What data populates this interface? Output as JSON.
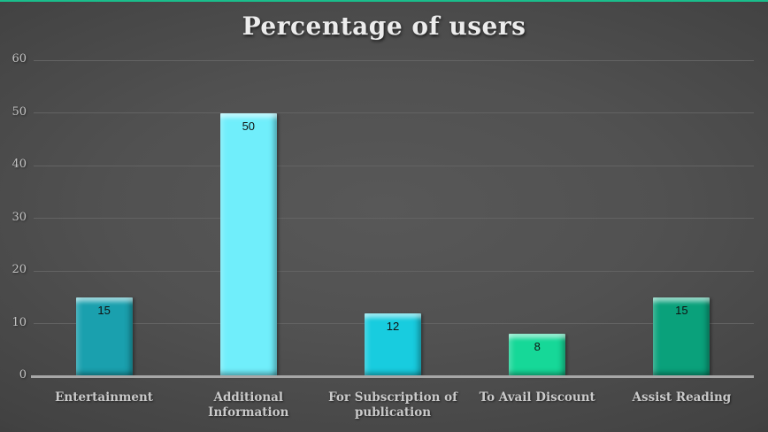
{
  "chart_data": {
    "type": "bar",
    "title": "Percentage of users",
    "categories": [
      "Entertainment",
      "Additional Information",
      "For Subscription of publication",
      "To Avail Discount",
      "Assist Reading"
    ],
    "values": [
      15,
      50,
      12,
      8,
      15
    ],
    "value_labels_shown": true,
    "bar_colors": [
      "#1aa0ae",
      "#70eefb",
      "#18ccdf",
      "#16d898",
      "#0aa17b"
    ],
    "xlabel": "",
    "ylabel": "",
    "ylim": [
      0,
      60
    ],
    "yticks": [
      0,
      10,
      20,
      30,
      40,
      50,
      60
    ],
    "grid": "horizontal",
    "legend_position": "none"
  },
  "colors": {
    "top_accent_border": "#1abe8c",
    "background_center": "#585858",
    "background_edge": "#222222",
    "gridline": "#636363",
    "axis_baseline": "#a7a7a7",
    "axis_text": "#c3c3c3",
    "title_text": "#ececec",
    "value_label_text": "#111111"
  }
}
